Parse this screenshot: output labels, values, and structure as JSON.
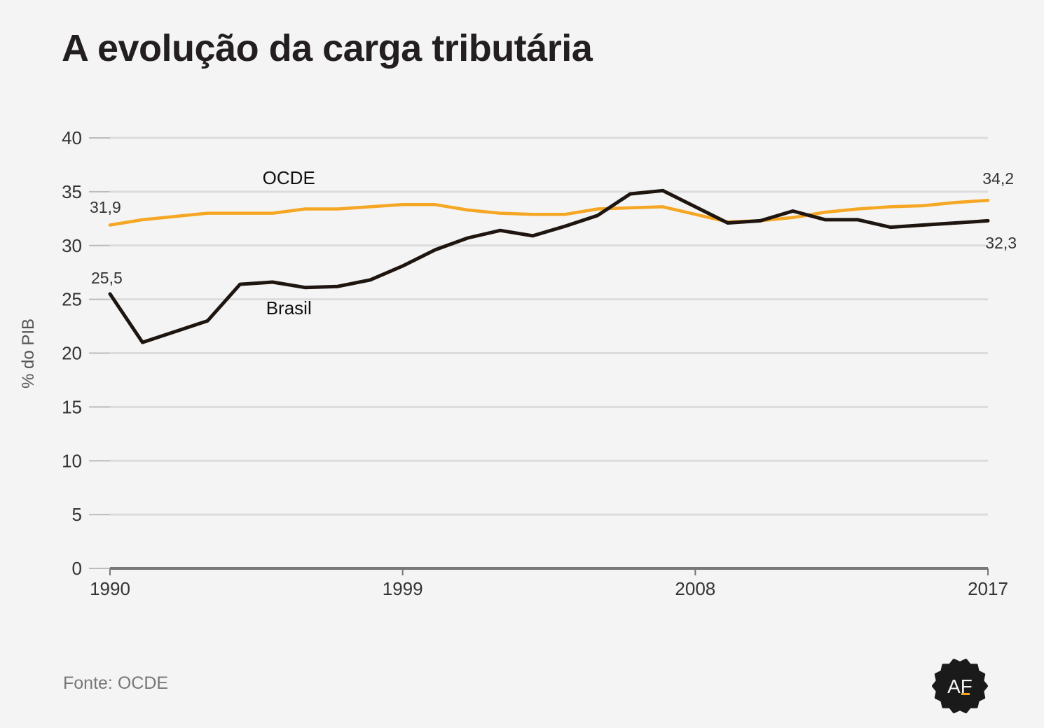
{
  "title": "A evolução da carga tributária",
  "source": "Fonte: OCDE",
  "logo": {
    "text": "AF",
    "icon": "af-seal-logo",
    "color": "#1a1a1a"
  },
  "chart_data": {
    "type": "line",
    "title": "A evolução da carga tributária",
    "xlabel": "",
    "ylabel": "% do PIB",
    "xlim": [
      1990,
      2017
    ],
    "ylim": [
      0,
      40
    ],
    "yticks": [
      0,
      5,
      10,
      15,
      20,
      25,
      30,
      35,
      40
    ],
    "xticks": [
      1990,
      1999,
      2008,
      2017
    ],
    "grid": true,
    "x": [
      1990,
      1991,
      1992,
      1993,
      1994,
      1995,
      1996,
      1997,
      1998,
      1999,
      2000,
      2001,
      2002,
      2003,
      2004,
      2005,
      2006,
      2007,
      2008,
      2009,
      2010,
      2011,
      2012,
      2013,
      2014,
      2015,
      2016,
      2017
    ],
    "series": [
      {
        "name": "OCDE",
        "color": "#f5a623",
        "values": [
          31.9,
          32.4,
          32.7,
          33.0,
          33.0,
          33.0,
          33.4,
          33.4,
          33.6,
          33.8,
          33.8,
          33.3,
          33.0,
          32.9,
          32.9,
          33.4,
          33.5,
          33.6,
          32.9,
          32.2,
          32.3,
          32.6,
          33.1,
          33.4,
          33.6,
          33.7,
          34.0,
          34.2
        ],
        "label_position": [
          1995.5,
          35.7
        ],
        "start_label": "31,9",
        "end_label": "34,2"
      },
      {
        "name": "Brasil",
        "color": "#1e1510",
        "values": [
          25.5,
          21.0,
          22.0,
          23.0,
          26.4,
          26.6,
          26.1,
          26.2,
          26.8,
          28.1,
          29.6,
          30.7,
          31.4,
          30.9,
          31.8,
          32.8,
          34.8,
          35.1,
          33.6,
          32.1,
          32.3,
          33.2,
          32.4,
          32.4,
          31.7,
          31.9,
          32.1,
          32.3
        ],
        "label_position": [
          1995.5,
          23.6
        ],
        "start_label": "25,5",
        "end_label": "32,3"
      }
    ]
  }
}
